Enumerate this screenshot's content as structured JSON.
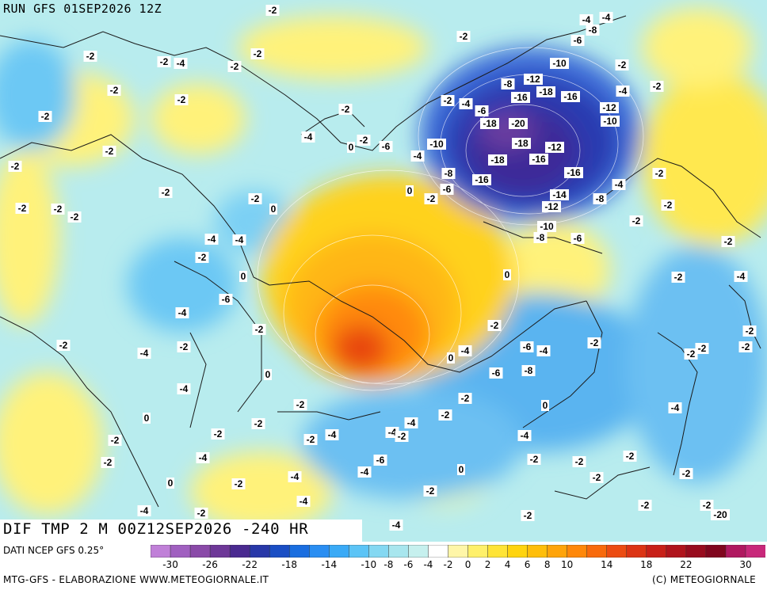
{
  "header": {
    "run": "RUN GFS 01SEP2026 12Z"
  },
  "map": {
    "title": "DIF TMP 2 M 00Z12SEP2026 -240 HR",
    "labels": [
      {
        "text": "-2"
      },
      {
        "text": "-4"
      },
      {
        "text": "-4"
      },
      {
        "text": "-8"
      },
      {
        "text": "-2"
      },
      {
        "text": "-6"
      },
      {
        "text": "-2"
      },
      {
        "text": "-2"
      },
      {
        "text": "-4"
      },
      {
        "text": "-2"
      },
      {
        "text": "-2"
      },
      {
        "text": "-10"
      },
      {
        "text": "-2"
      },
      {
        "text": "-2"
      },
      {
        "text": "-12"
      },
      {
        "text": "-8"
      },
      {
        "text": "-18"
      },
      {
        "text": "-2"
      },
      {
        "text": "-2"
      },
      {
        "text": "-16"
      },
      {
        "text": "-16"
      },
      {
        "text": "-4"
      },
      {
        "text": "-2"
      },
      {
        "text": "-4"
      },
      {
        "text": "-6"
      },
      {
        "text": "-12"
      },
      {
        "text": "-2"
      },
      {
        "text": "-18"
      },
      {
        "text": "-20"
      },
      {
        "text": "-10"
      },
      {
        "text": "-2"
      },
      {
        "text": "-4"
      },
      {
        "text": "0"
      },
      {
        "text": "-2"
      },
      {
        "text": "-6"
      },
      {
        "text": "-10"
      },
      {
        "text": "-18"
      },
      {
        "text": "-12"
      },
      {
        "text": "-2"
      },
      {
        "text": "-4"
      },
      {
        "text": "-18"
      },
      {
        "text": "-16"
      },
      {
        "text": "-2"
      },
      {
        "text": "-2"
      },
      {
        "text": "-8"
      },
      {
        "text": "-16"
      },
      {
        "text": "-16"
      },
      {
        "text": "-2"
      },
      {
        "text": "-4"
      },
      {
        "text": "-2"
      },
      {
        "text": "0"
      },
      {
        "text": "-2"
      },
      {
        "text": "-6"
      },
      {
        "text": "-14"
      },
      {
        "text": "-12"
      },
      {
        "text": "-8"
      },
      {
        "text": "-2"
      },
      {
        "text": "-2"
      },
      {
        "text": "-2"
      },
      {
        "text": "-2"
      },
      {
        "text": "0"
      },
      {
        "text": "-10"
      },
      {
        "text": "-2"
      },
      {
        "text": "-4"
      },
      {
        "text": "-4"
      },
      {
        "text": "-8"
      },
      {
        "text": "-6"
      },
      {
        "text": "-2"
      },
      {
        "text": "-2"
      },
      {
        "text": "0"
      },
      {
        "text": "0"
      },
      {
        "text": "-6"
      },
      {
        "text": "-2"
      },
      {
        "text": "-4"
      },
      {
        "text": "-4"
      },
      {
        "text": "-2"
      },
      {
        "text": "-2"
      },
      {
        "text": "-2"
      },
      {
        "text": "-2"
      },
      {
        "text": "-4"
      },
      {
        "text": "-2"
      },
      {
        "text": "-2"
      },
      {
        "text": "-6"
      },
      {
        "text": "-4"
      },
      {
        "text": "0"
      },
      {
        "text": "-6"
      },
      {
        "text": "-8"
      },
      {
        "text": "-2"
      },
      {
        "text": "-4"
      },
      {
        "text": "0"
      },
      {
        "text": "-2"
      },
      {
        "text": "-2"
      },
      {
        "text": "-4"
      },
      {
        "text": "-2"
      },
      {
        "text": "-2"
      },
      {
        "text": "0"
      },
      {
        "text": "0"
      },
      {
        "text": "-4"
      },
      {
        "text": "-2"
      },
      {
        "text": "-2"
      },
      {
        "text": "-4"
      },
      {
        "text": "-4"
      },
      {
        "text": "-4"
      },
      {
        "text": "-2"
      },
      {
        "text": "-4"
      },
      {
        "text": "-6"
      },
      {
        "text": "-2"
      },
      {
        "text": "-2"
      },
      {
        "text": "-2"
      },
      {
        "text": "-4"
      },
      {
        "text": "-2"
      },
      {
        "text": "-2"
      },
      {
        "text": "-2"
      },
      {
        "text": "-2"
      },
      {
        "text": "0"
      },
      {
        "text": "-4"
      },
      {
        "text": "-2"
      },
      {
        "text": "-2"
      },
      {
        "text": "0"
      },
      {
        "text": "-2"
      },
      {
        "text": "-4"
      },
      {
        "text": "-2"
      },
      {
        "text": "-2"
      },
      {
        "text": "-2"
      },
      {
        "text": "-2"
      },
      {
        "text": "-20"
      },
      {
        "text": "-4"
      },
      {
        "text": "-4"
      },
      {
        "text": "-2"
      },
      {
        "text": "-4"
      }
    ]
  },
  "legend": {
    "source": "DATI NCEP GFS 0.25°",
    "ticks": [
      "-30",
      "-26",
      "-22",
      "-18",
      "-14",
      "-10",
      "-8",
      "-6",
      "-4",
      "-2",
      "0",
      "2",
      "4",
      "6",
      "8",
      "10",
      "14",
      "18",
      "22",
      "30"
    ],
    "colors": [
      "#c080d8",
      "#a060c0",
      "#8a4aa8",
      "#6e3898",
      "#4a2a90",
      "#2838a8",
      "#1a4ec4",
      "#1a6ee0",
      "#2a8ef2",
      "#3aaaf6",
      "#5cc4f6",
      "#84d8f2",
      "#a8e6ee",
      "#c6f0ee",
      "#ffffff",
      "#fff6a8",
      "#fff06a",
      "#ffe436",
      "#ffd40e",
      "#ffbe0a",
      "#ffa40a",
      "#ff880a",
      "#f86a0c",
      "#ec4c12",
      "#dc3414",
      "#c82018",
      "#b0141c",
      "#980c1e",
      "#80061e",
      "#b01860",
      "#c8287a"
    ]
  },
  "footer": {
    "left": "MTG-GFS - ELABORAZIONE WWW.METEOGIORNALE.IT",
    "right": "(C) METEOGIORNALE"
  }
}
